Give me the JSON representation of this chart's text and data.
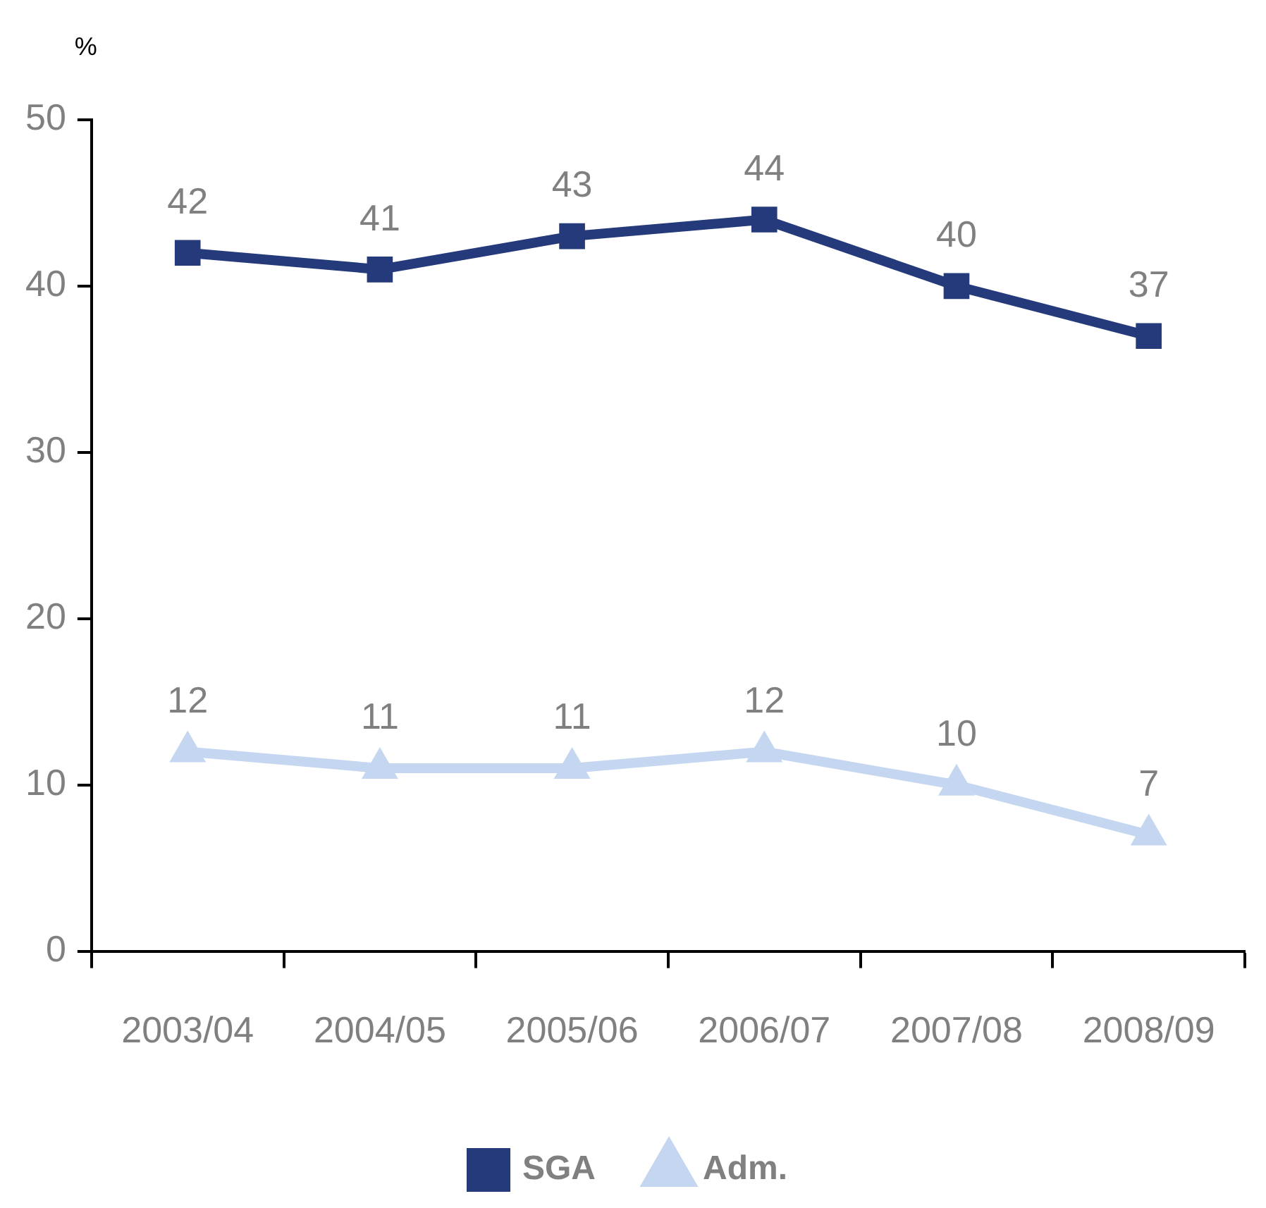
{
  "chart_data": {
    "type": "line",
    "ylabel": "%",
    "categories": [
      "2003/04",
      "2004/05",
      "2005/06",
      "2006/07",
      "2007/08",
      "2008/09"
    ],
    "series": [
      {
        "name": "SGA",
        "color": "#253a7a",
        "marker": "square",
        "values": [
          42,
          41,
          43,
          44,
          40,
          37
        ]
      },
      {
        "name": "Adm.",
        "color": "#c5d7f0",
        "marker": "triangle",
        "values": [
          12,
          11,
          11,
          12,
          10,
          7
        ]
      }
    ],
    "ylim": [
      0,
      50
    ],
    "yticks": [
      0,
      10,
      20,
      30,
      40,
      50
    ],
    "grid": false,
    "legend": "bottom",
    "data_labels": true
  }
}
